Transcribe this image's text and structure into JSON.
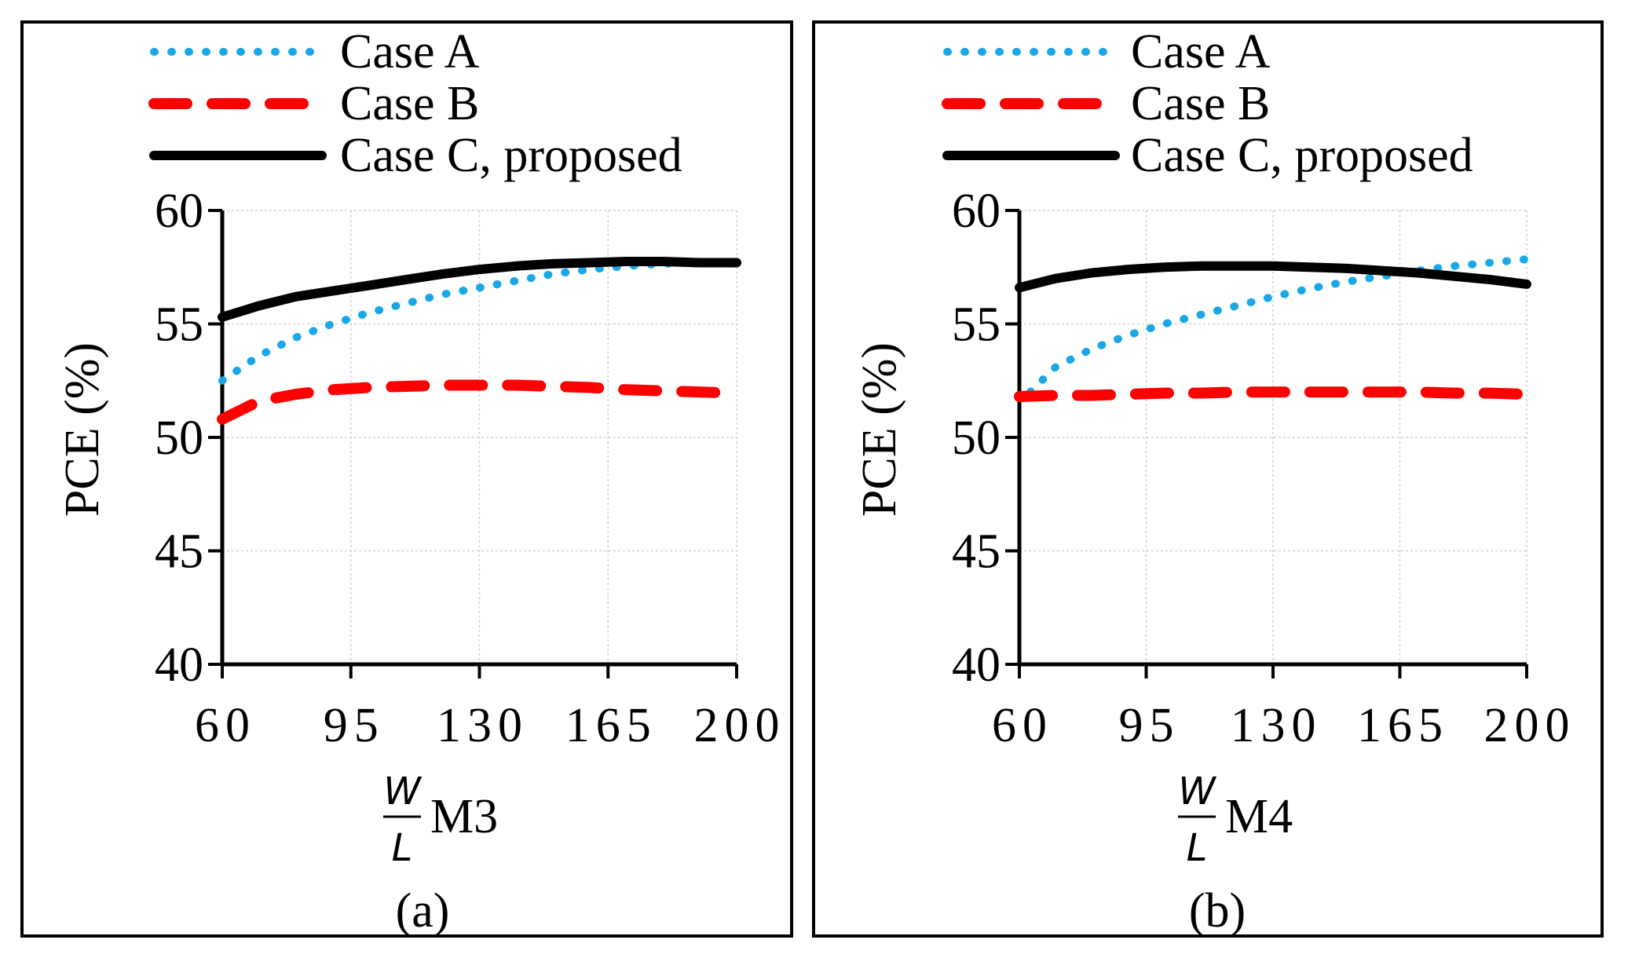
{
  "chart_data": [
    {
      "type": "line",
      "panel_label": "(a)",
      "device": "M3",
      "xlabel_numerator": "W",
      "xlabel_denominator": "L",
      "ylabel": "PCE (%)",
      "xlim": [
        60,
        200
      ],
      "ylim": [
        40,
        60
      ],
      "xticks": [
        "60",
        "95",
        "130",
        "165",
        "200"
      ],
      "yticks": [
        "40",
        "45",
        "50",
        "55",
        "60"
      ],
      "grid": true,
      "legend": "top",
      "series": [
        {
          "name": "Case A",
          "style": "dotted",
          "color": "#1aa7e8",
          "x": [
            60,
            70,
            80,
            90,
            100,
            110,
            120,
            130,
            140,
            150,
            160,
            170,
            180,
            190,
            200
          ],
          "y": [
            52.5,
            53.6,
            54.4,
            55.0,
            55.5,
            55.9,
            56.3,
            56.6,
            56.9,
            57.2,
            57.4,
            57.55,
            57.65,
            57.7,
            57.75
          ]
        },
        {
          "name": "Case B",
          "style": "dashed",
          "color": "#ff0000",
          "x": [
            60,
            70,
            80,
            90,
            100,
            110,
            120,
            130,
            140,
            150,
            160,
            170,
            180,
            190,
            200
          ],
          "y": [
            50.8,
            51.6,
            51.9,
            52.1,
            52.2,
            52.25,
            52.3,
            52.3,
            52.3,
            52.25,
            52.2,
            52.1,
            52.05,
            52.0,
            51.95
          ]
        },
        {
          "name": "Case C, proposed",
          "style": "solid",
          "color": "#000000",
          "x": [
            60,
            70,
            80,
            90,
            100,
            110,
            120,
            130,
            140,
            150,
            160,
            170,
            180,
            190,
            200
          ],
          "y": [
            55.3,
            55.8,
            56.2,
            56.45,
            56.7,
            56.95,
            57.2,
            57.4,
            57.55,
            57.65,
            57.7,
            57.75,
            57.75,
            57.7,
            57.7
          ]
        }
      ]
    },
    {
      "type": "line",
      "panel_label": "(b)",
      "device": "M4",
      "xlabel_numerator": "W",
      "xlabel_denominator": "L",
      "ylabel": "PCE (%)",
      "xlim": [
        60,
        200
      ],
      "ylim": [
        40,
        60
      ],
      "xticks": [
        "60",
        "95",
        "130",
        "165",
        "200"
      ],
      "yticks": [
        "40",
        "45",
        "50",
        "55",
        "60"
      ],
      "grid": true,
      "legend": "top",
      "series": [
        {
          "name": "Case A",
          "style": "dotted",
          "color": "#1aa7e8",
          "x": [
            63,
            70,
            80,
            90,
            100,
            110,
            120,
            130,
            140,
            150,
            160,
            170,
            180,
            190,
            200
          ],
          "y": [
            52.0,
            53.1,
            53.9,
            54.5,
            55.0,
            55.4,
            55.8,
            56.2,
            56.55,
            56.85,
            57.1,
            57.35,
            57.55,
            57.7,
            57.85
          ]
        },
        {
          "name": "Case B",
          "style": "dashed",
          "color": "#ff0000",
          "x": [
            60,
            70,
            80,
            90,
            100,
            110,
            120,
            130,
            140,
            150,
            160,
            170,
            180,
            190,
            200
          ],
          "y": [
            51.8,
            51.85,
            51.85,
            51.9,
            51.95,
            51.95,
            52.0,
            52.0,
            52.0,
            52.0,
            52.0,
            52.0,
            51.95,
            51.95,
            51.9
          ]
        },
        {
          "name": "Case C, proposed",
          "style": "solid",
          "color": "#000000",
          "x": [
            60,
            70,
            80,
            90,
            100,
            110,
            120,
            130,
            140,
            150,
            160,
            170,
            180,
            190,
            200
          ],
          "y": [
            56.6,
            57.0,
            57.25,
            57.4,
            57.5,
            57.55,
            57.55,
            57.55,
            57.5,
            57.45,
            57.35,
            57.25,
            57.1,
            56.95,
            56.75
          ]
        }
      ]
    }
  ]
}
